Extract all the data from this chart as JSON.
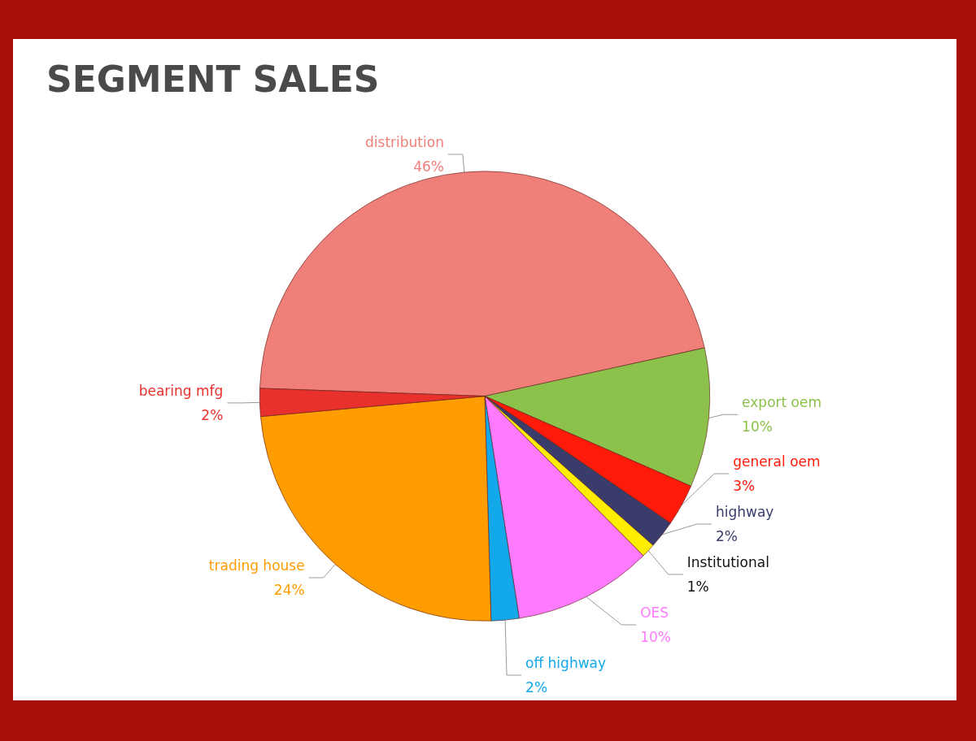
{
  "chart_data": {
    "type": "pie",
    "title": "SEGMENT SALES",
    "categories": [
      "distribution",
      "export oem",
      "general oem",
      "highway",
      "Institutional",
      "OES",
      "off highway",
      "trading house",
      "bearing mfg"
    ],
    "values": [
      46,
      10,
      3,
      2,
      1,
      10,
      2,
      24,
      2
    ],
    "value_labels": [
      "46%",
      "10%",
      "3%",
      "2%",
      "1%",
      "10%",
      "2%",
      "24%",
      "2%"
    ],
    "colors": [
      "#f07f7a",
      "#8cc14c",
      "#ff1a0a",
      "#3a3d6b",
      "#ffee00",
      "#ff7aff",
      "#12a8ea",
      "#ff9c00",
      "#e8302c"
    ]
  }
}
